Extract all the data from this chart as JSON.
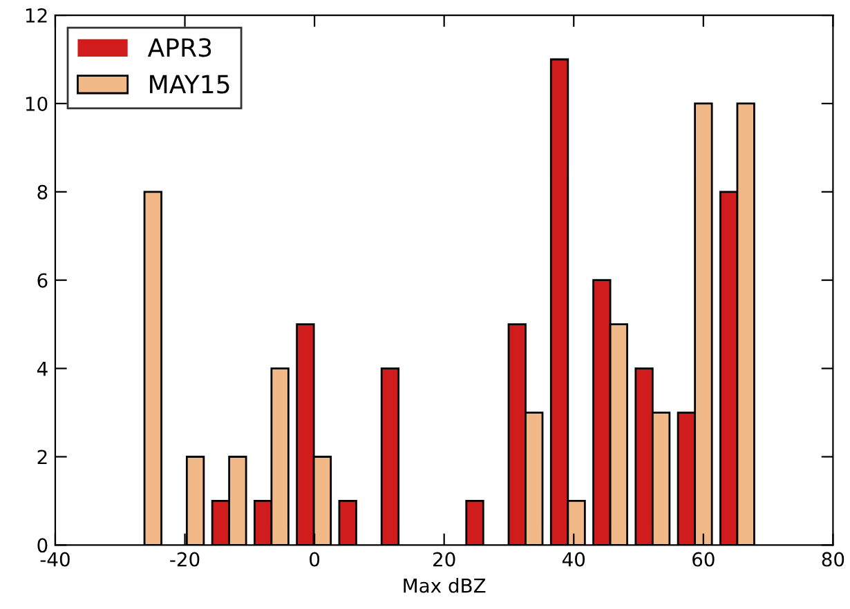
{
  "chart_data": {
    "type": "histogram",
    "xlabel": "Max dBZ",
    "bins": [
      -29.5,
      -22.97,
      -16.43,
      -9.9,
      -3.37,
      3.17,
      9.7,
      16.23,
      22.77,
      29.3,
      35.83,
      42.37,
      48.9,
      55.43,
      61.97,
      68.5
    ],
    "series": [
      {
        "name": "APR3",
        "color": "#d01c1c",
        "values": [
          0,
          0,
          1,
          1,
          5,
          1,
          4,
          0,
          1,
          5,
          11,
          6,
          4,
          3,
          8
        ]
      },
      {
        "name": "MAY15",
        "color": "#f0b987",
        "values": [
          8,
          2,
          2,
          4,
          2,
          0,
          0,
          0,
          0,
          3,
          1,
          5,
          3,
          10,
          10
        ]
      }
    ],
    "xlim": [
      -40,
      80
    ],
    "xticks": [
      -40,
      -20,
      0,
      20,
      40,
      60,
      80
    ],
    "ylim": [
      0,
      12
    ],
    "yticks": [
      0,
      2,
      4,
      6,
      8,
      10,
      12
    ],
    "grid": false,
    "legend": "top left"
  }
}
